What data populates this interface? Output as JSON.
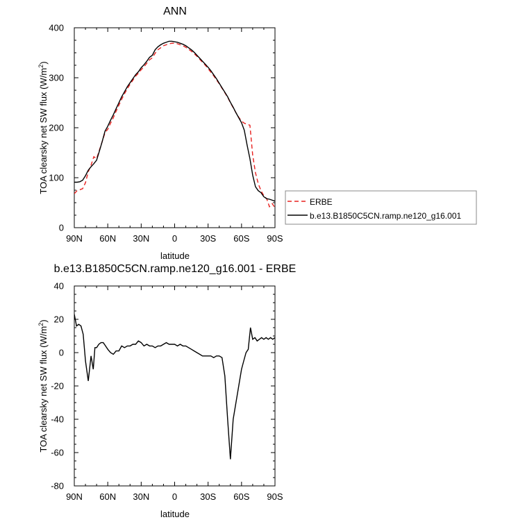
{
  "chart_data": [
    {
      "type": "line",
      "title": "ANN",
      "xlabel": "latitude",
      "ylabel": "TOA clearsky net SW flux (W/m",
      "ylabel_sup": "2",
      "ylabel_close": ")",
      "xlim": [
        90,
        -90
      ],
      "ylim": [
        0,
        400
      ],
      "xticks": [
        90,
        60,
        30,
        0,
        -30,
        -60,
        -90
      ],
      "xticklabels": [
        "90N",
        "60N",
        "30N",
        "0",
        "30S",
        "60S",
        "90S"
      ],
      "yticks": [
        0,
        100,
        200,
        300,
        400
      ],
      "yticklabels": [
        "0",
        "100",
        "200",
        "300",
        "400"
      ],
      "legend": "outside-right",
      "series": [
        {
          "name": "ERBE",
          "color": "#e8211f",
          "dash": "dashed",
          "x": [
            90,
            87.5,
            85,
            82.5,
            80,
            77.5,
            75,
            72.5,
            70,
            67.5,
            65,
            62.5,
            60,
            57.5,
            55,
            52.5,
            50,
            47.5,
            45,
            42.5,
            40,
            37.5,
            35,
            32.5,
            30,
            27.5,
            25,
            22.5,
            20,
            17.5,
            15,
            12.5,
            10,
            7.5,
            5,
            2.5,
            0,
            -2.5,
            -5,
            -7.5,
            -10,
            -12.5,
            -15,
            -17.5,
            -20,
            -22.5,
            -25,
            -27.5,
            -30,
            -32.5,
            -35,
            -37.5,
            -40,
            -42.5,
            -45,
            -47.5,
            -50,
            -52.5,
            -55,
            -57.5,
            -60,
            -62.5,
            -65,
            -67.5,
            -70,
            -72.5,
            -75,
            -77.5,
            -80,
            -82.5,
            -85,
            -87.5,
            -90
          ],
          "values": [
            68,
            74,
            76,
            78,
            90,
            112,
            125,
            142,
            138,
            155,
            172,
            190,
            197,
            209,
            220,
            233,
            245,
            257,
            268,
            278,
            287,
            295,
            303,
            309,
            316,
            322,
            329,
            336,
            340,
            349,
            356,
            360,
            364,
            366,
            368,
            369,
            369,
            368,
            366,
            364,
            361,
            357,
            353,
            348,
            343,
            337,
            331,
            325,
            318,
            311,
            304,
            296,
            288,
            279,
            270,
            261,
            250,
            240,
            230,
            221,
            213,
            209,
            207,
            205,
            145,
            110,
            88,
            74,
            64,
            58,
            42,
            48,
            40
          ]
        },
        {
          "name": "b.e13.B1850C5CN.ramp.ne120_g16.001",
          "color": "#000000",
          "dash": "solid",
          "x": [
            90,
            87.5,
            85,
            82.5,
            80,
            77.5,
            75,
            72.5,
            70,
            67.5,
            65,
            62.5,
            60,
            57.5,
            55,
            52.5,
            50,
            47.5,
            45,
            42.5,
            40,
            37.5,
            35,
            32.5,
            30,
            27.5,
            25,
            22.5,
            20,
            17.5,
            15,
            12.5,
            10,
            7.5,
            5,
            2.5,
            0,
            -2.5,
            -5,
            -7.5,
            -10,
            -12.5,
            -15,
            -17.5,
            -20,
            -22.5,
            -25,
            -27.5,
            -30,
            -32.5,
            -35,
            -37.5,
            -40,
            -42.5,
            -45,
            -47.5,
            -50,
            -52.5,
            -55,
            -57.5,
            -60,
            -62.5,
            -65,
            -67.5,
            -70,
            -72.5,
            -75,
            -77.5,
            -80,
            -82.5,
            -85,
            -87.5,
            -90
          ],
          "values": [
            91,
            91,
            92,
            95,
            104,
            115,
            122,
            128,
            135,
            153,
            172,
            193,
            203,
            215,
            226,
            238,
            250,
            262,
            272,
            282,
            290,
            298,
            306,
            312,
            320,
            326,
            333,
            341,
            345,
            356,
            362,
            366,
            369,
            371,
            373,
            373,
            372,
            371,
            369,
            367,
            364,
            360,
            356,
            351,
            345,
            339,
            333,
            327,
            321,
            314,
            306,
            298,
            289,
            280,
            271,
            262,
            251,
            241,
            230,
            220,
            210,
            195,
            165,
            138,
            105,
            82,
            74,
            70,
            62,
            58,
            57,
            55,
            53
          ]
        }
      ]
    },
    {
      "type": "line",
      "title": "b.e13.B1850C5CN.ramp.ne120_g16.001 - ERBE",
      "xlabel": "latitude",
      "ylabel": "TOA clearsky net SW flux (W/m",
      "ylabel_sup": "2",
      "ylabel_close": ")",
      "xlim": [
        90,
        -90
      ],
      "ylim": [
        -80,
        40
      ],
      "xticks": [
        90,
        60,
        30,
        0,
        -30,
        -60,
        -90
      ],
      "xticklabels": [
        "90N",
        "60N",
        "30N",
        "0",
        "30S",
        "60S",
        "90S"
      ],
      "yticks": [
        -80,
        -60,
        -40,
        -20,
        0,
        20,
        40
      ],
      "yticklabels": [
        "-80",
        "-60",
        "-40",
        "-20",
        "0",
        "20",
        "40"
      ],
      "series": [
        {
          "name": "",
          "color": "#000000",
          "dash": "solid",
          "x": [
            90,
            88,
            86,
            84,
            82,
            80,
            77.5,
            75,
            73,
            71.5,
            70,
            68,
            66,
            64,
            62,
            60,
            57.5,
            55,
            52.5,
            50,
            47.5,
            45,
            42.5,
            40,
            37.5,
            35,
            32.5,
            30,
            27.5,
            25,
            22.5,
            20,
            17.5,
            15,
            12.5,
            10,
            7.5,
            5,
            2.5,
            0,
            -2.5,
            -5,
            -7.5,
            -10,
            -12.5,
            -15,
            -17.5,
            -20,
            -22.5,
            -25,
            -27.5,
            -30,
            -32.5,
            -35,
            -37.5,
            -40,
            -42.5,
            -45,
            -47.5,
            -50,
            -52.5,
            -55,
            -57.5,
            -60,
            -62,
            -64,
            -66,
            -68,
            -70,
            -72,
            -74,
            -76,
            -78,
            -80,
            -82,
            -84,
            -86,
            -88,
            -90
          ],
          "values": [
            23,
            16,
            17,
            16,
            11,
            -5,
            -17,
            -2,
            -10,
            3,
            3,
            5,
            6,
            6,
            4,
            2,
            0,
            -1,
            1,
            1,
            4,
            3,
            4,
            4,
            5,
            5,
            7,
            6,
            4,
            5,
            4,
            4,
            3,
            4,
            4,
            5,
            6,
            5,
            5,
            5,
            4,
            5,
            4,
            4,
            3,
            2,
            1,
            0,
            -1,
            -2,
            -2,
            -2,
            -2,
            -3,
            -2,
            -2,
            -3,
            -14,
            -40,
            -64,
            -40,
            -30,
            -20,
            -10,
            -5,
            0,
            2,
            15,
            8,
            9,
            7,
            8,
            9,
            8,
            9,
            8,
            9,
            8,
            9
          ]
        }
      ]
    }
  ]
}
